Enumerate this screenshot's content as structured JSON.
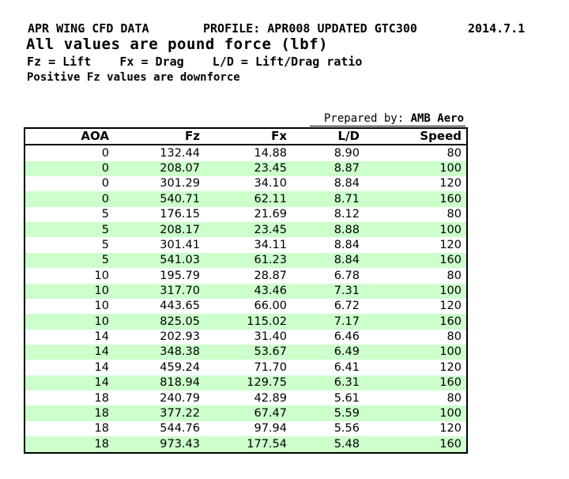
{
  "header": {
    "title": "APR WING CFD DATA",
    "profile": "PROFILE: APR008 UPDATED GTC300",
    "date": "2014.7.1",
    "subtitle": "All values are pound force (lbf)",
    "legend": "Fz = Lift    Fx = Drag    L/D = Lift/Drag ratio",
    "note": "Positive Fz values are downforce"
  },
  "prepared_by": {
    "label": "Prepared by: ",
    "value": "AMB Aero"
  },
  "table": {
    "columns": [
      "AOA",
      "Fz",
      "Fx",
      "L/D",
      "Speed"
    ],
    "rows": [
      [
        "0",
        "132.44",
        "14.88",
        "8.90",
        "80"
      ],
      [
        "0",
        "208.07",
        "23.45",
        "8.87",
        "100"
      ],
      [
        "0",
        "301.29",
        "34.10",
        "8.84",
        "120"
      ],
      [
        "0",
        "540.71",
        "62.11",
        "8.71",
        "160"
      ],
      [
        "5",
        "176.15",
        "21.69",
        "8.12",
        "80"
      ],
      [
        "5",
        "208.17",
        "23.45",
        "8.88",
        "100"
      ],
      [
        "5",
        "301.41",
        "34.11",
        "8.84",
        "120"
      ],
      [
        "5",
        "541.03",
        "61.23",
        "8.84",
        "160"
      ],
      [
        "10",
        "195.79",
        "28.87",
        "6.78",
        "80"
      ],
      [
        "10",
        "317.70",
        "43.46",
        "7.31",
        "100"
      ],
      [
        "10",
        "443.65",
        "66.00",
        "6.72",
        "120"
      ],
      [
        "10",
        "825.05",
        "115.02",
        "7.17",
        "160"
      ],
      [
        "14",
        "202.93",
        "31.40",
        "6.46",
        "80"
      ],
      [
        "14",
        "348.38",
        "53.67",
        "6.49",
        "100"
      ],
      [
        "14",
        "459.24",
        "71.70",
        "6.41",
        "120"
      ],
      [
        "14",
        "818.94",
        "129.75",
        "6.31",
        "160"
      ],
      [
        "18",
        "240.79",
        "42.89",
        "5.61",
        "80"
      ],
      [
        "18",
        "377.22",
        "67.47",
        "5.59",
        "100"
      ],
      [
        "18",
        "544.76",
        "97.94",
        "5.56",
        "120"
      ],
      [
        "18",
        "973.43",
        "177.54",
        "5.48",
        "160"
      ]
    ]
  },
  "colors": {
    "background": "#ffffff",
    "text": "#000000",
    "border": "#000000",
    "row_alt_green": "#ccffcc"
  }
}
